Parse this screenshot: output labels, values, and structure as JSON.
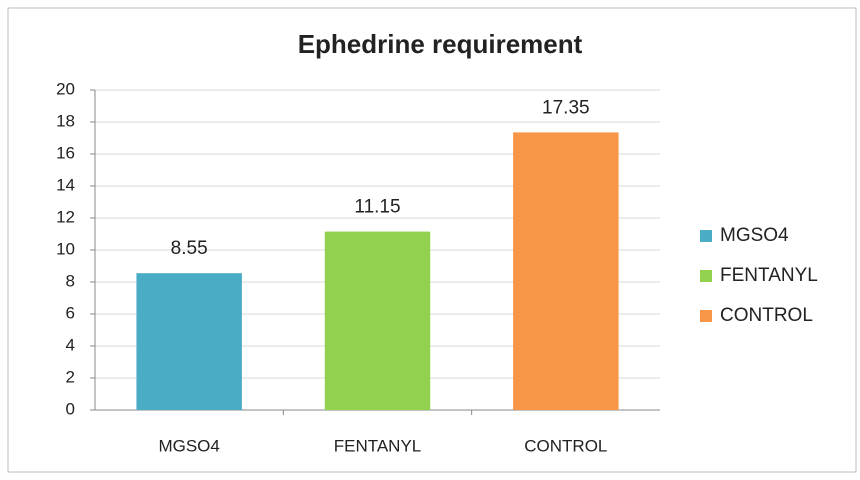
{
  "chart_data": {
    "type": "bar",
    "title": "Ephedrine requirement",
    "categories": [
      "MGSO4",
      "FENTANYL",
      "CONTROL"
    ],
    "values": [
      8.55,
      11.15,
      17.35
    ],
    "colors": [
      "#4bacc6",
      "#92d050",
      "#f79646"
    ],
    "ylim": [
      0,
      20
    ],
    "yticks": [
      0,
      2,
      4,
      6,
      8,
      10,
      12,
      14,
      16,
      18,
      20
    ],
    "grid": true,
    "legend": "right"
  }
}
